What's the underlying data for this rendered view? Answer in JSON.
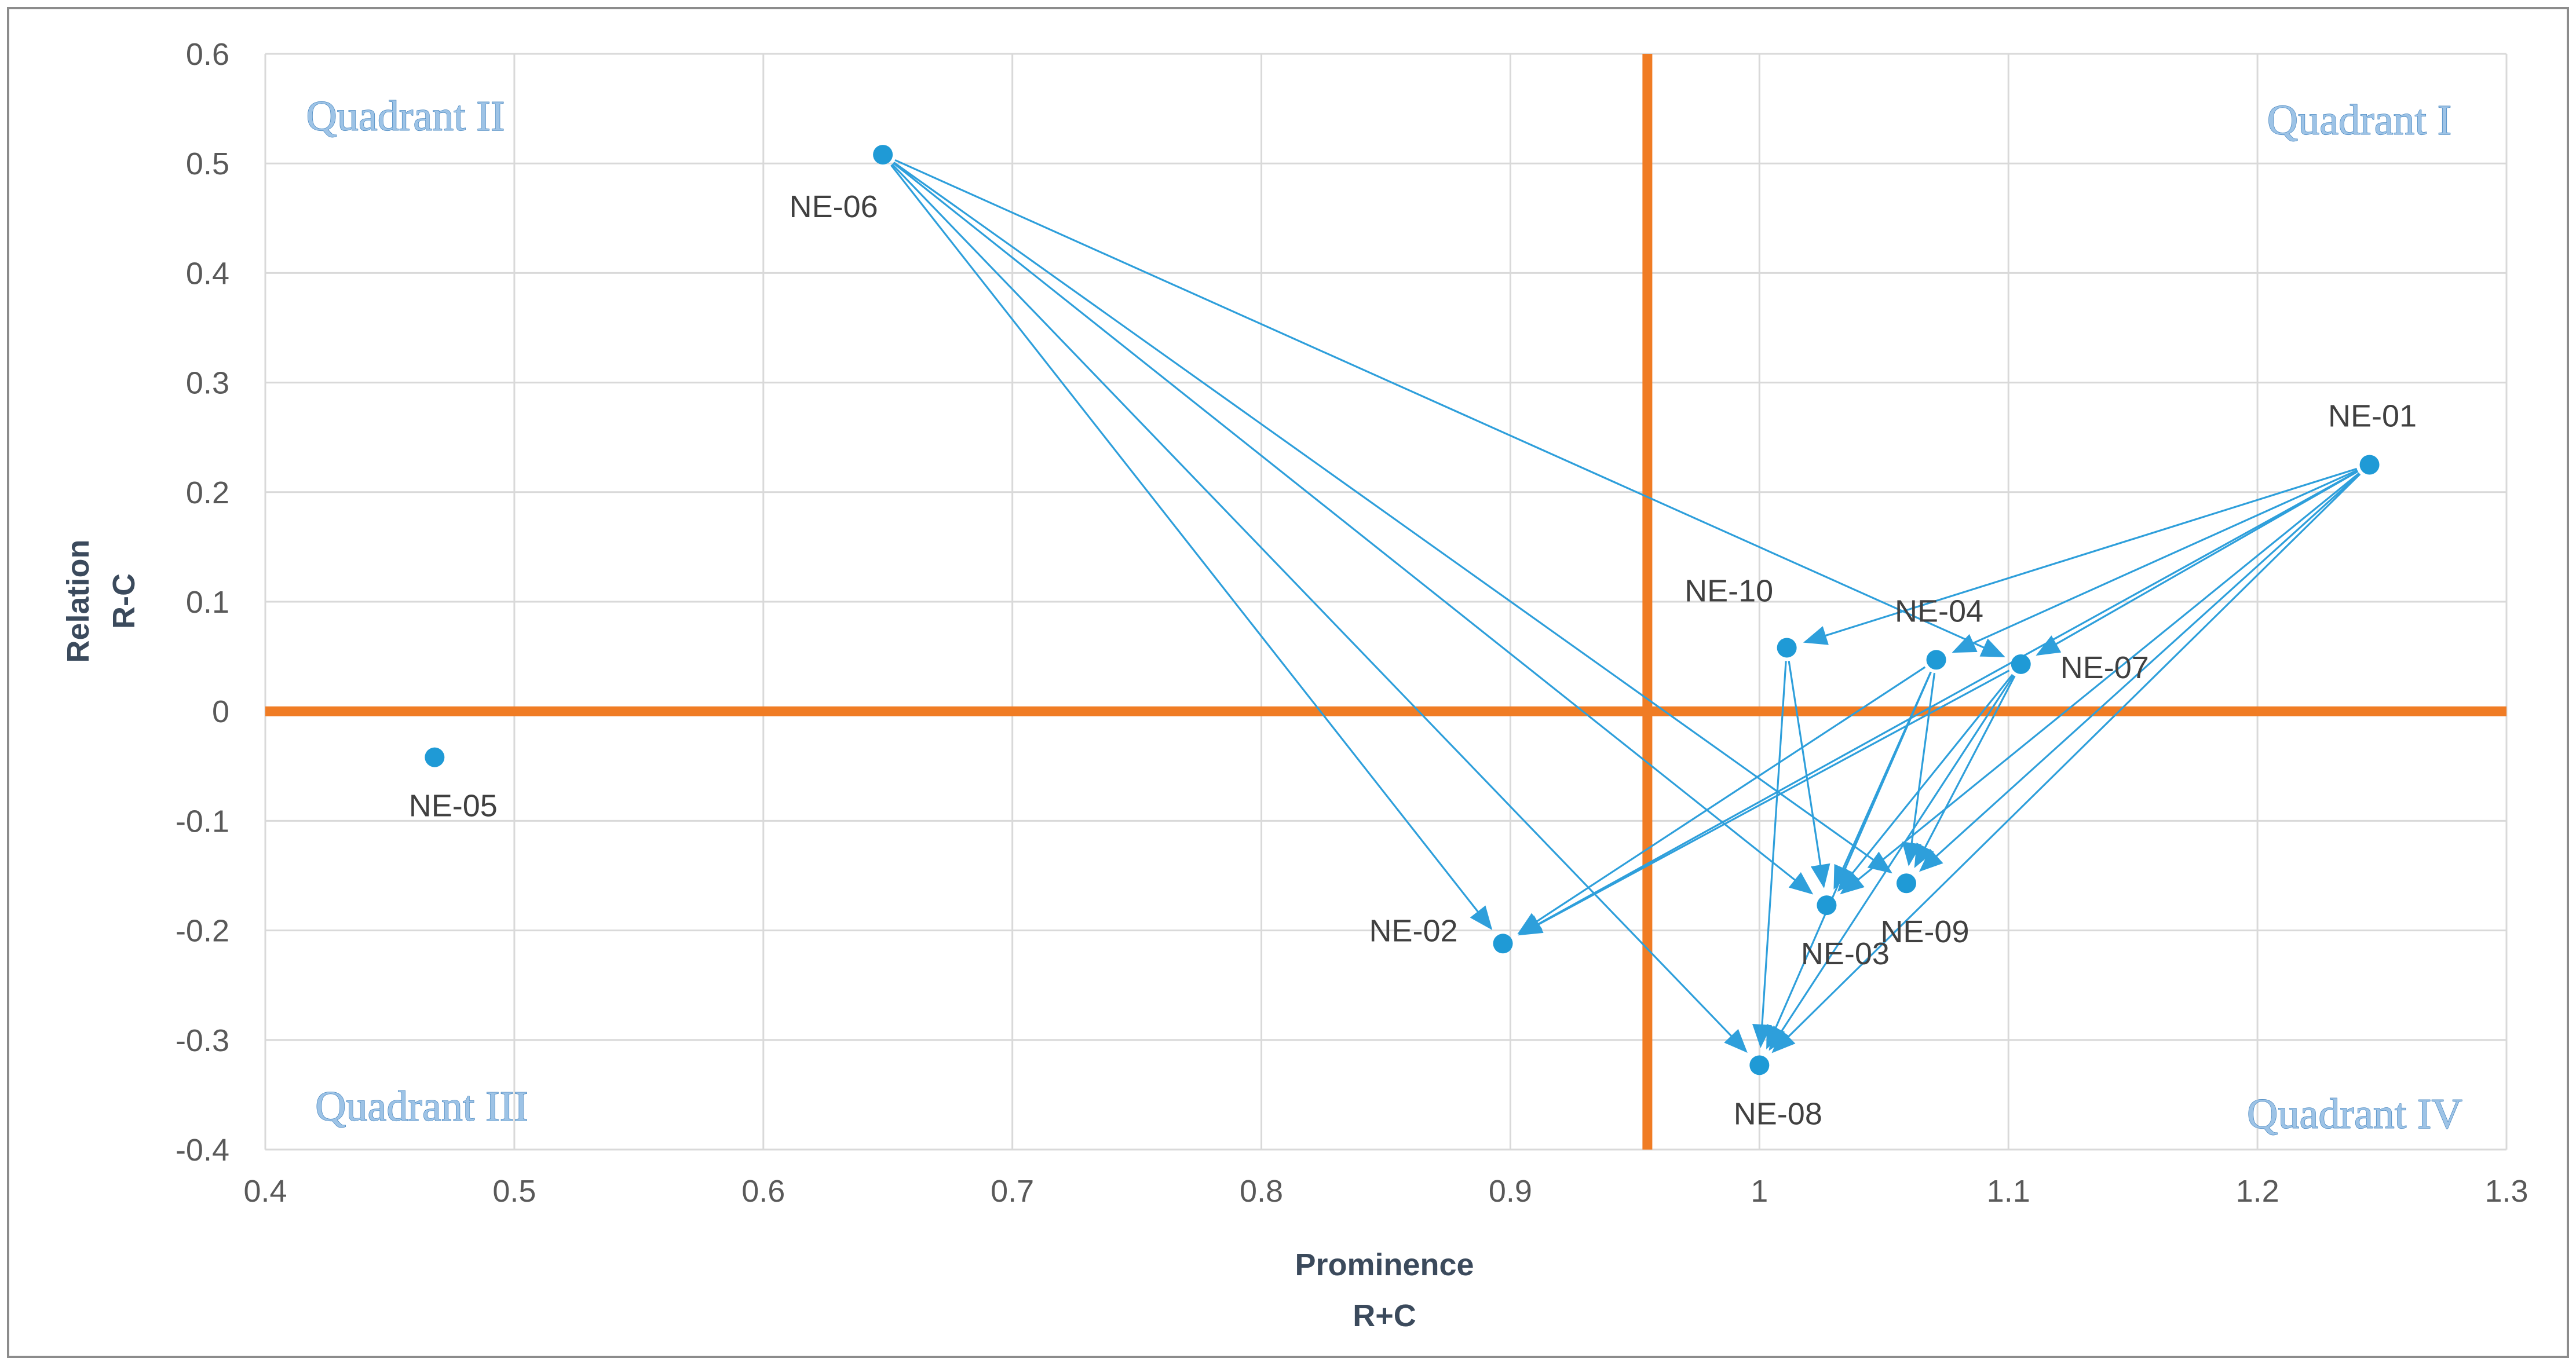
{
  "chart_data": {
    "type": "scatter",
    "title": "",
    "xlabel": [
      "Prominence",
      "R+C"
    ],
    "ylabel": [
      "Relation",
      "R-C"
    ],
    "xlim": [
      0.4,
      1.3
    ],
    "ylim": [
      -0.4,
      0.6
    ],
    "xticks": [
      "0.4",
      "0.5",
      "0.6",
      "0.7",
      "0.8",
      "0.9",
      "1",
      "1.1",
      "1.2",
      "1.3"
    ],
    "yticks": [
      "0.6",
      "0.5",
      "0.4",
      "0.3",
      "0.2",
      "0.1",
      "0",
      "-0.1",
      "-0.2",
      "-0.3",
      "-0.4"
    ],
    "grid": true,
    "threshold_lines": {
      "x": 0.955,
      "y": 0
    },
    "quadrant_labels": {
      "q1": "Quadrant I",
      "q2": "Quadrant II",
      "q3": "Quadrant III",
      "q4": "Quadrant IV"
    },
    "points": [
      {
        "id": "NE-01",
        "label": "NE-01",
        "x": 1.245,
        "y": 0.225,
        "label_pos": "above"
      },
      {
        "id": "NE-02",
        "label": "NE-02",
        "x": 0.897,
        "y": -0.212,
        "label_pos": "left"
      },
      {
        "id": "NE-03",
        "label": "NE-03",
        "x": 1.027,
        "y": -0.177,
        "label_pos": "below"
      },
      {
        "id": "NE-04",
        "label": "NE-04",
        "x": 1.071,
        "y": 0.047,
        "label_pos": "above"
      },
      {
        "id": "NE-05",
        "label": "NE-05",
        "x": 0.468,
        "y": -0.042,
        "label_pos": "below"
      },
      {
        "id": "NE-06",
        "label": "NE-06",
        "x": 0.648,
        "y": 0.508,
        "label_pos": "below-left"
      },
      {
        "id": "NE-07",
        "label": "NE-07",
        "x": 1.105,
        "y": 0.043,
        "label_pos": "right"
      },
      {
        "id": "NE-08",
        "label": "NE-08",
        "x": 1.0,
        "y": -0.323,
        "label_pos": "below"
      },
      {
        "id": "NE-09",
        "label": "NE-09",
        "x": 1.059,
        "y": -0.157,
        "label_pos": "below"
      },
      {
        "id": "NE-10",
        "label": "NE-10",
        "x": 1.011,
        "y": 0.058,
        "label_pos": "above-left"
      }
    ],
    "relations": [
      {
        "from": "NE-06",
        "to": "NE-02"
      },
      {
        "from": "NE-06",
        "to": "NE-03"
      },
      {
        "from": "NE-06",
        "to": "NE-08"
      },
      {
        "from": "NE-06",
        "to": "NE-09"
      },
      {
        "from": "NE-06",
        "to": "NE-07"
      },
      {
        "from": "NE-01",
        "to": "NE-02"
      },
      {
        "from": "NE-01",
        "to": "NE-03"
      },
      {
        "from": "NE-01",
        "to": "NE-04"
      },
      {
        "from": "NE-01",
        "to": "NE-07"
      },
      {
        "from": "NE-01",
        "to": "NE-08"
      },
      {
        "from": "NE-01",
        "to": "NE-09"
      },
      {
        "from": "NE-01",
        "to": "NE-10"
      },
      {
        "from": "NE-04",
        "to": "NE-02"
      },
      {
        "from": "NE-04",
        "to": "NE-03"
      },
      {
        "from": "NE-04",
        "to": "NE-08"
      },
      {
        "from": "NE-04",
        "to": "NE-09"
      },
      {
        "from": "NE-07",
        "to": "NE-02"
      },
      {
        "from": "NE-07",
        "to": "NE-03"
      },
      {
        "from": "NE-07",
        "to": "NE-08"
      },
      {
        "from": "NE-07",
        "to": "NE-09"
      },
      {
        "from": "NE-10",
        "to": "NE-03"
      },
      {
        "from": "NE-10",
        "to": "NE-08"
      }
    ],
    "colors": {
      "points": "#1f9ad6",
      "arrows": "#2e9fdb",
      "threshold": "#f07c24",
      "grid": "#d9d9d9",
      "border": "#7f7f7f"
    }
  }
}
